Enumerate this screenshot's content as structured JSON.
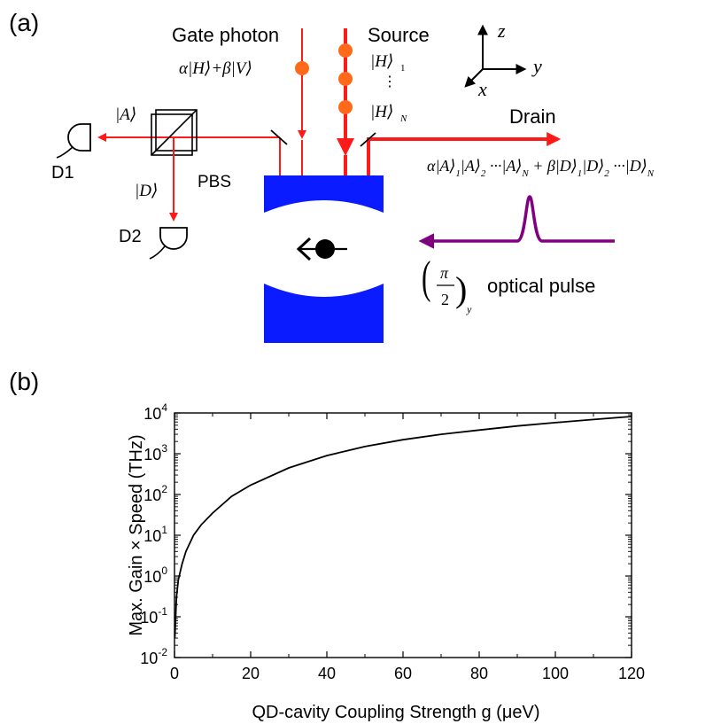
{
  "panel_a": {
    "label": "(a)",
    "gate_photon": "Gate photon",
    "gate_state": "α|H⟩+β|V⟩",
    "source": "Source",
    "source_state_1": "|H⟩",
    "source_state_1_sub": "1",
    "source_state_n": "|H⟩",
    "source_state_n_sub": "N",
    "drain": "Drain",
    "drain_state_parts": [
      "α|A⟩",
      "1",
      "|A⟩",
      "2",
      " ···|A⟩",
      "N",
      " + β|D⟩",
      "1",
      "|D⟩",
      "2",
      " ···|D⟩",
      "N"
    ],
    "state_a": "|A⟩",
    "state_d": "|D⟩",
    "d1": "D1",
    "d2": "D2",
    "pbs": "PBS",
    "axis_z": "z",
    "axis_y": "y",
    "axis_x": "x",
    "pulse_pi": "π",
    "pulse_two": "2",
    "pulse_sub": "y",
    "optical_pulse": "optical pulse",
    "colors": {
      "beam": "#ff1a1a",
      "dot": "#ff6a1a",
      "cavity": "#0b1bff",
      "pulse": "#800080",
      "ink": "#000000"
    }
  },
  "panel_b": {
    "label": "(b)",
    "chart_data": {
      "type": "line",
      "title": "",
      "xlabel": "QD-cavity Coupling Strength g (μeV)",
      "ylabel": "Max. Gain × Speed (THz)",
      "xlim": [
        0,
        120
      ],
      "ylim_log10": [
        -2,
        4
      ],
      "yscale": "log",
      "x_ticks": [
        0,
        20,
        40,
        60,
        80,
        100,
        120
      ],
      "y_tick_exponents": [
        -2,
        -1,
        0,
        1,
        2,
        3,
        4
      ],
      "y_tick_base": "10",
      "grid": false,
      "series": [
        {
          "x": [
            0.1,
            0.5,
            1,
            2,
            3,
            5,
            7,
            10,
            15,
            20,
            30,
            40,
            50,
            60,
            70,
            80,
            90,
            100,
            110,
            120
          ],
          "y": [
            0.03,
            0.3,
            0.8,
            2,
            4,
            10,
            18,
            35,
            90,
            170,
            450,
            900,
            1500,
            2200,
            3000,
            3800,
            4800,
            5800,
            6900,
            8200
          ]
        }
      ]
    }
  }
}
